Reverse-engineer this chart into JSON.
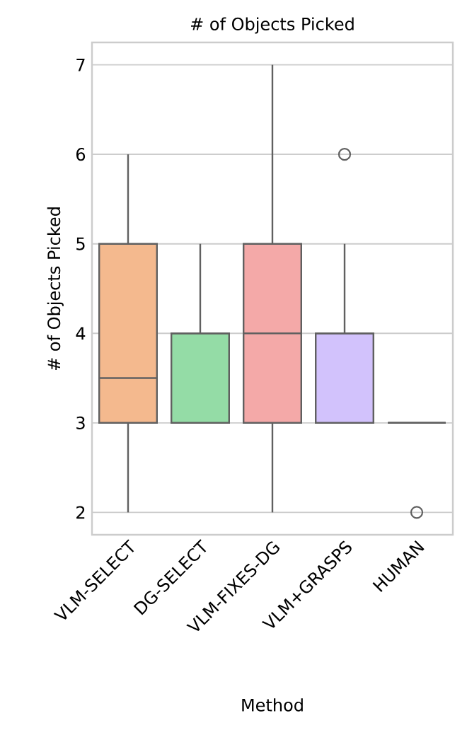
{
  "chart_data": {
    "type": "box",
    "title": "# of Objects Picked",
    "xlabel": "Method",
    "ylabel": "# of Objects Picked",
    "categories": [
      "VLM-SELECT",
      "DG-SELECT",
      "VLM-FIXES-DG",
      "VLM+GRASPS",
      "HUMAN"
    ],
    "boxes": [
      {
        "low": 2,
        "q1": 3,
        "median": 3.5,
        "q3": 5,
        "high": 6
      },
      {
        "low": 3,
        "q1": 3,
        "median": 4,
        "q3": 4,
        "high": 5
      },
      {
        "low": 2,
        "q1": 3,
        "median": 4,
        "q3": 5,
        "high": 7
      },
      {
        "low": 3,
        "q1": 3,
        "median": 4,
        "q3": 4,
        "high": 5,
        "outliers": [
          6
        ]
      },
      {
        "low": 3,
        "q1": 3,
        "median": 3,
        "q3": 3,
        "high": 3,
        "outliers": [
          2
        ]
      }
    ],
    "colors": [
      "#f4b98e",
      "#94dca6",
      "#f4a9a8",
      "#d2c2fc",
      "#606060"
    ],
    "ylim": [
      1.75,
      7.25
    ],
    "yticks": [
      2,
      3,
      4,
      5,
      6,
      7
    ],
    "grid": "y"
  }
}
